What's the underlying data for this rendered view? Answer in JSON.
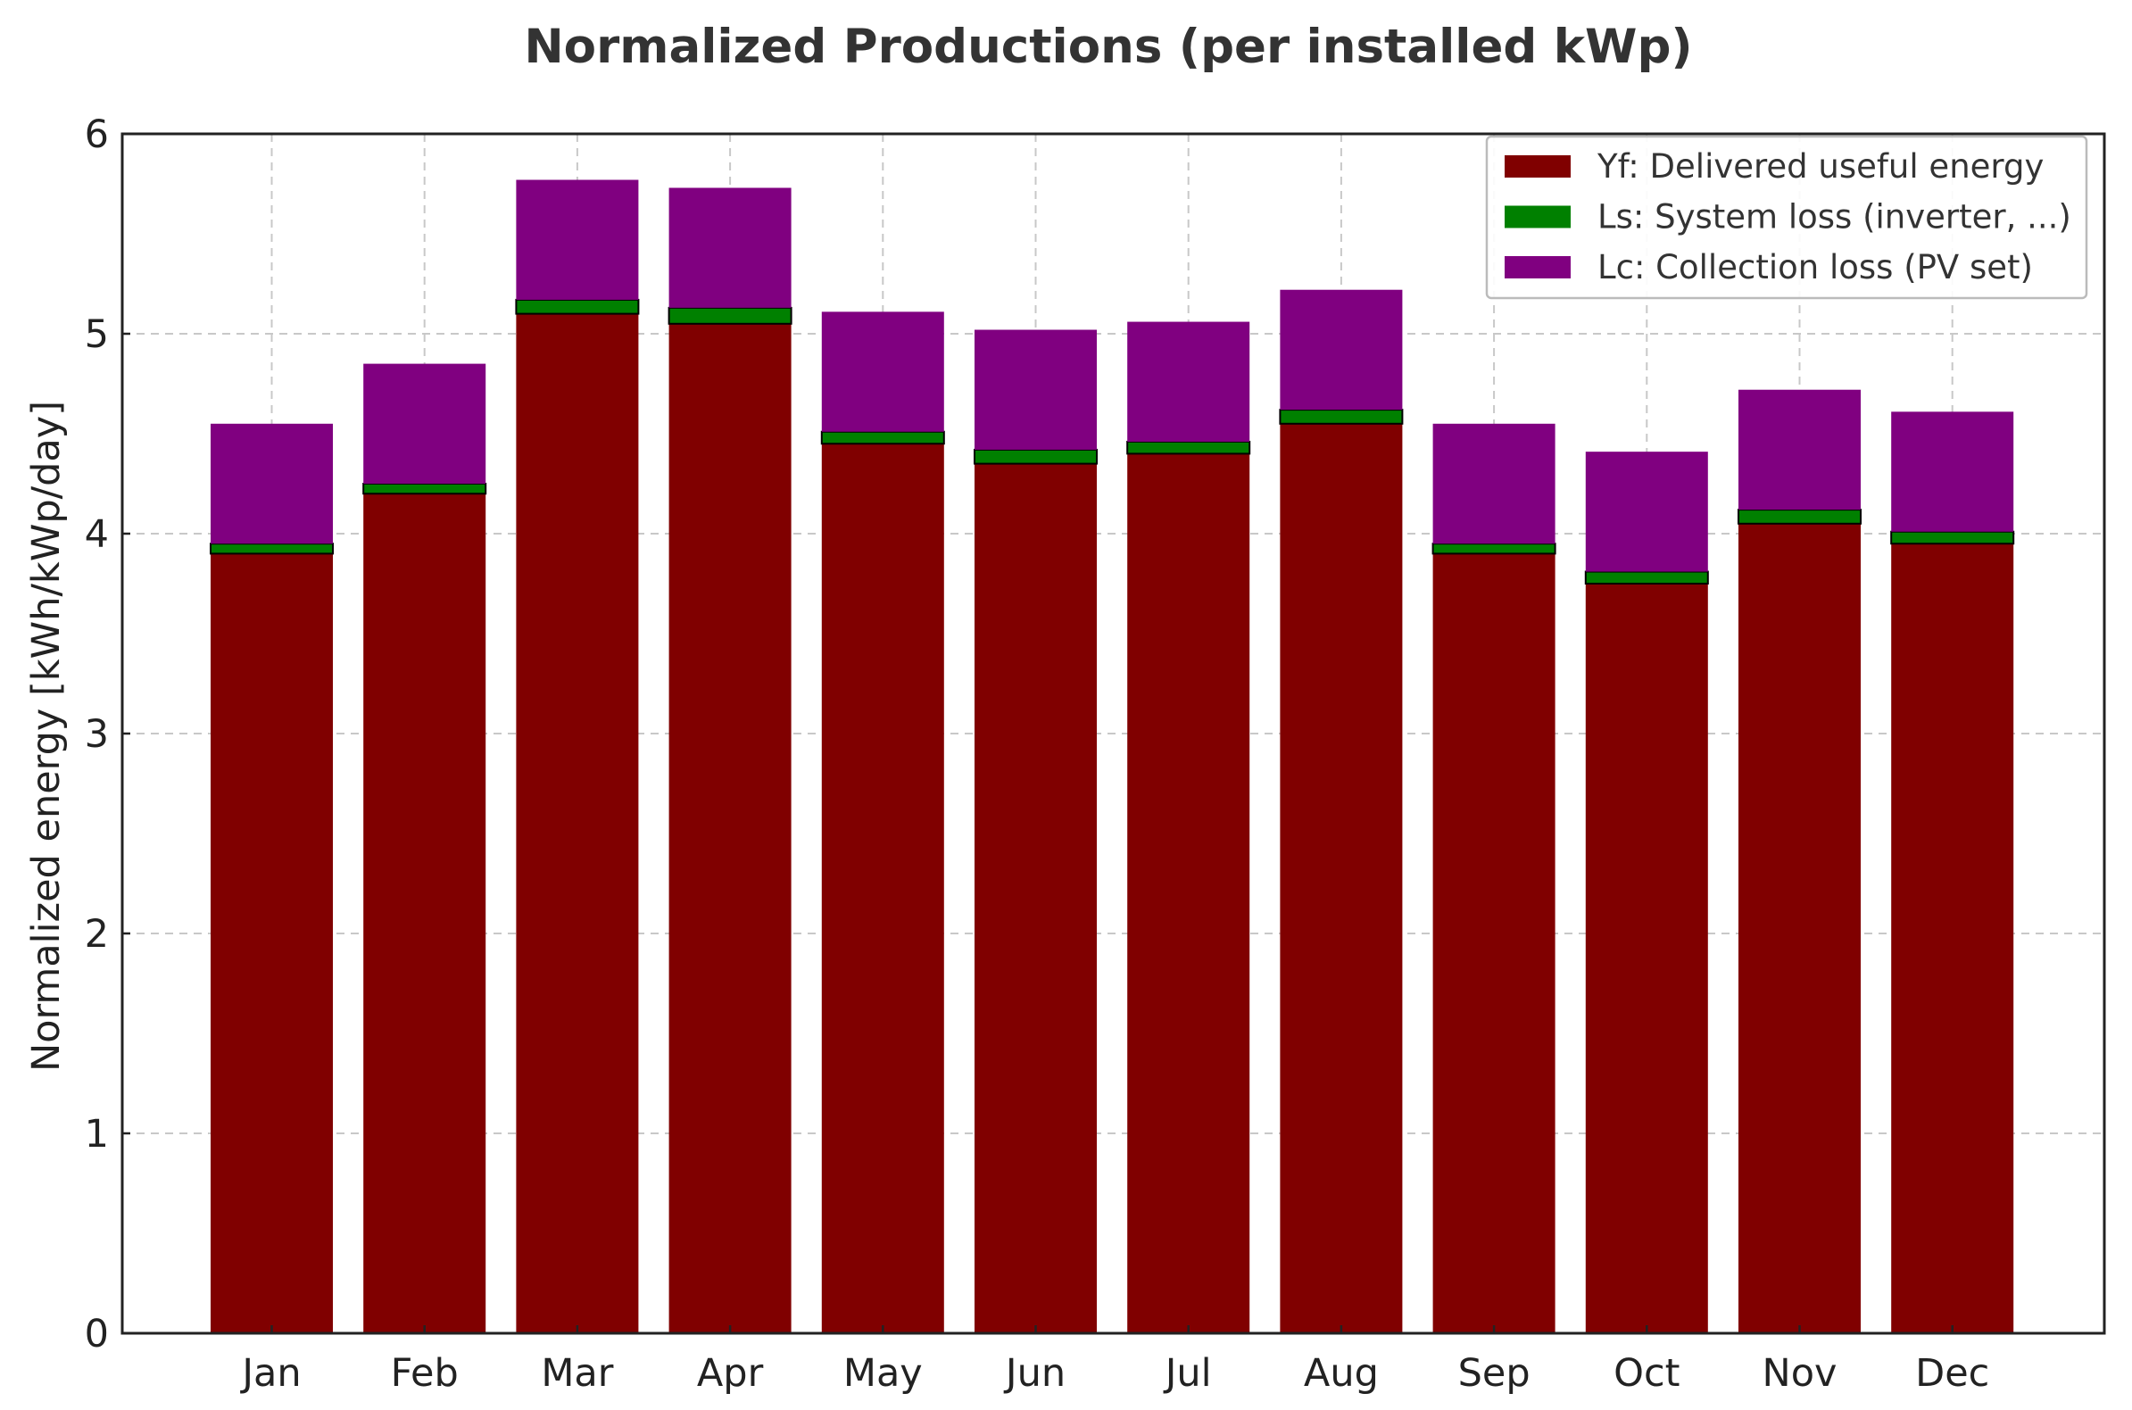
{
  "chart_data": {
    "type": "bar",
    "stacked": true,
    "title": "Normalized Productions (per installed kWp)",
    "xlabel": "",
    "ylabel": "Normalized energy [kWh/kWp/day]",
    "ylim": [
      0,
      6
    ],
    "yticks": [
      "0",
      "1",
      "2",
      "3",
      "4",
      "5",
      "6"
    ],
    "grid": true,
    "legend_position": "top-right",
    "categories": [
      "Jan",
      "Feb",
      "Mar",
      "Apr",
      "May",
      "Jun",
      "Jul",
      "Aug",
      "Sep",
      "Oct",
      "Nov",
      "Dec"
    ],
    "series": [
      {
        "name": "Yf: Delivered useful energy",
        "color": "#800000",
        "values": [
          3.9,
          4.2,
          5.1,
          5.05,
          4.45,
          4.35,
          4.4,
          4.55,
          3.9,
          3.75,
          4.05,
          3.95
        ]
      },
      {
        "name": "Ls: System loss (inverter, ...)",
        "color": "#008000",
        "values": [
          0.05,
          0.05,
          0.07,
          0.08,
          0.06,
          0.07,
          0.06,
          0.07,
          0.05,
          0.06,
          0.07,
          0.06
        ]
      },
      {
        "name": "Lc: Collection loss (PV set)",
        "color": "#800080",
        "values": [
          0.6,
          0.6,
          0.6,
          0.6,
          0.6,
          0.6,
          0.6,
          0.6,
          0.6,
          0.6,
          0.6,
          0.6
        ]
      }
    ]
  }
}
